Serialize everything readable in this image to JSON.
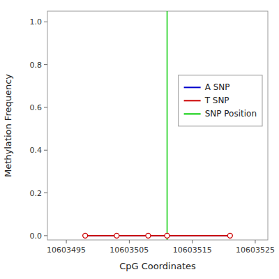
{
  "chart_data": {
    "type": "line",
    "xlabel": "CpG Coordinates",
    "ylabel": "Methylation Frequency",
    "x": [
      10603498,
      10603503,
      10603508,
      10603511,
      10603521
    ],
    "series": [
      {
        "name": "A SNP",
        "color": "#0000cc",
        "line_style": "solid",
        "values": [
          0.0,
          0.0,
          0.0,
          0.0,
          0.0
        ]
      },
      {
        "name": "T SNP",
        "color": "#cc0000",
        "line_style": "solid",
        "marker": "circle",
        "values": [
          0.0,
          0.0,
          0.0,
          0.0,
          0.0
        ]
      },
      {
        "name": "SNP Position",
        "color": "#00cc00",
        "type": "vline",
        "x": 10603511
      }
    ],
    "xlim": [
      10603492,
      10603527
    ],
    "ylim": [
      -0.02,
      1.05
    ],
    "xticks": [
      10603495,
      10603505,
      10603515,
      10603525
    ],
    "yticks": [
      {
        "value": 0.0,
        "label": "0.0"
      },
      0.2,
      0.4,
      0.6,
      0.8,
      {
        "value": 1.0,
        "label": "1.0"
      }
    ],
    "grid": false,
    "legend": "right"
  }
}
